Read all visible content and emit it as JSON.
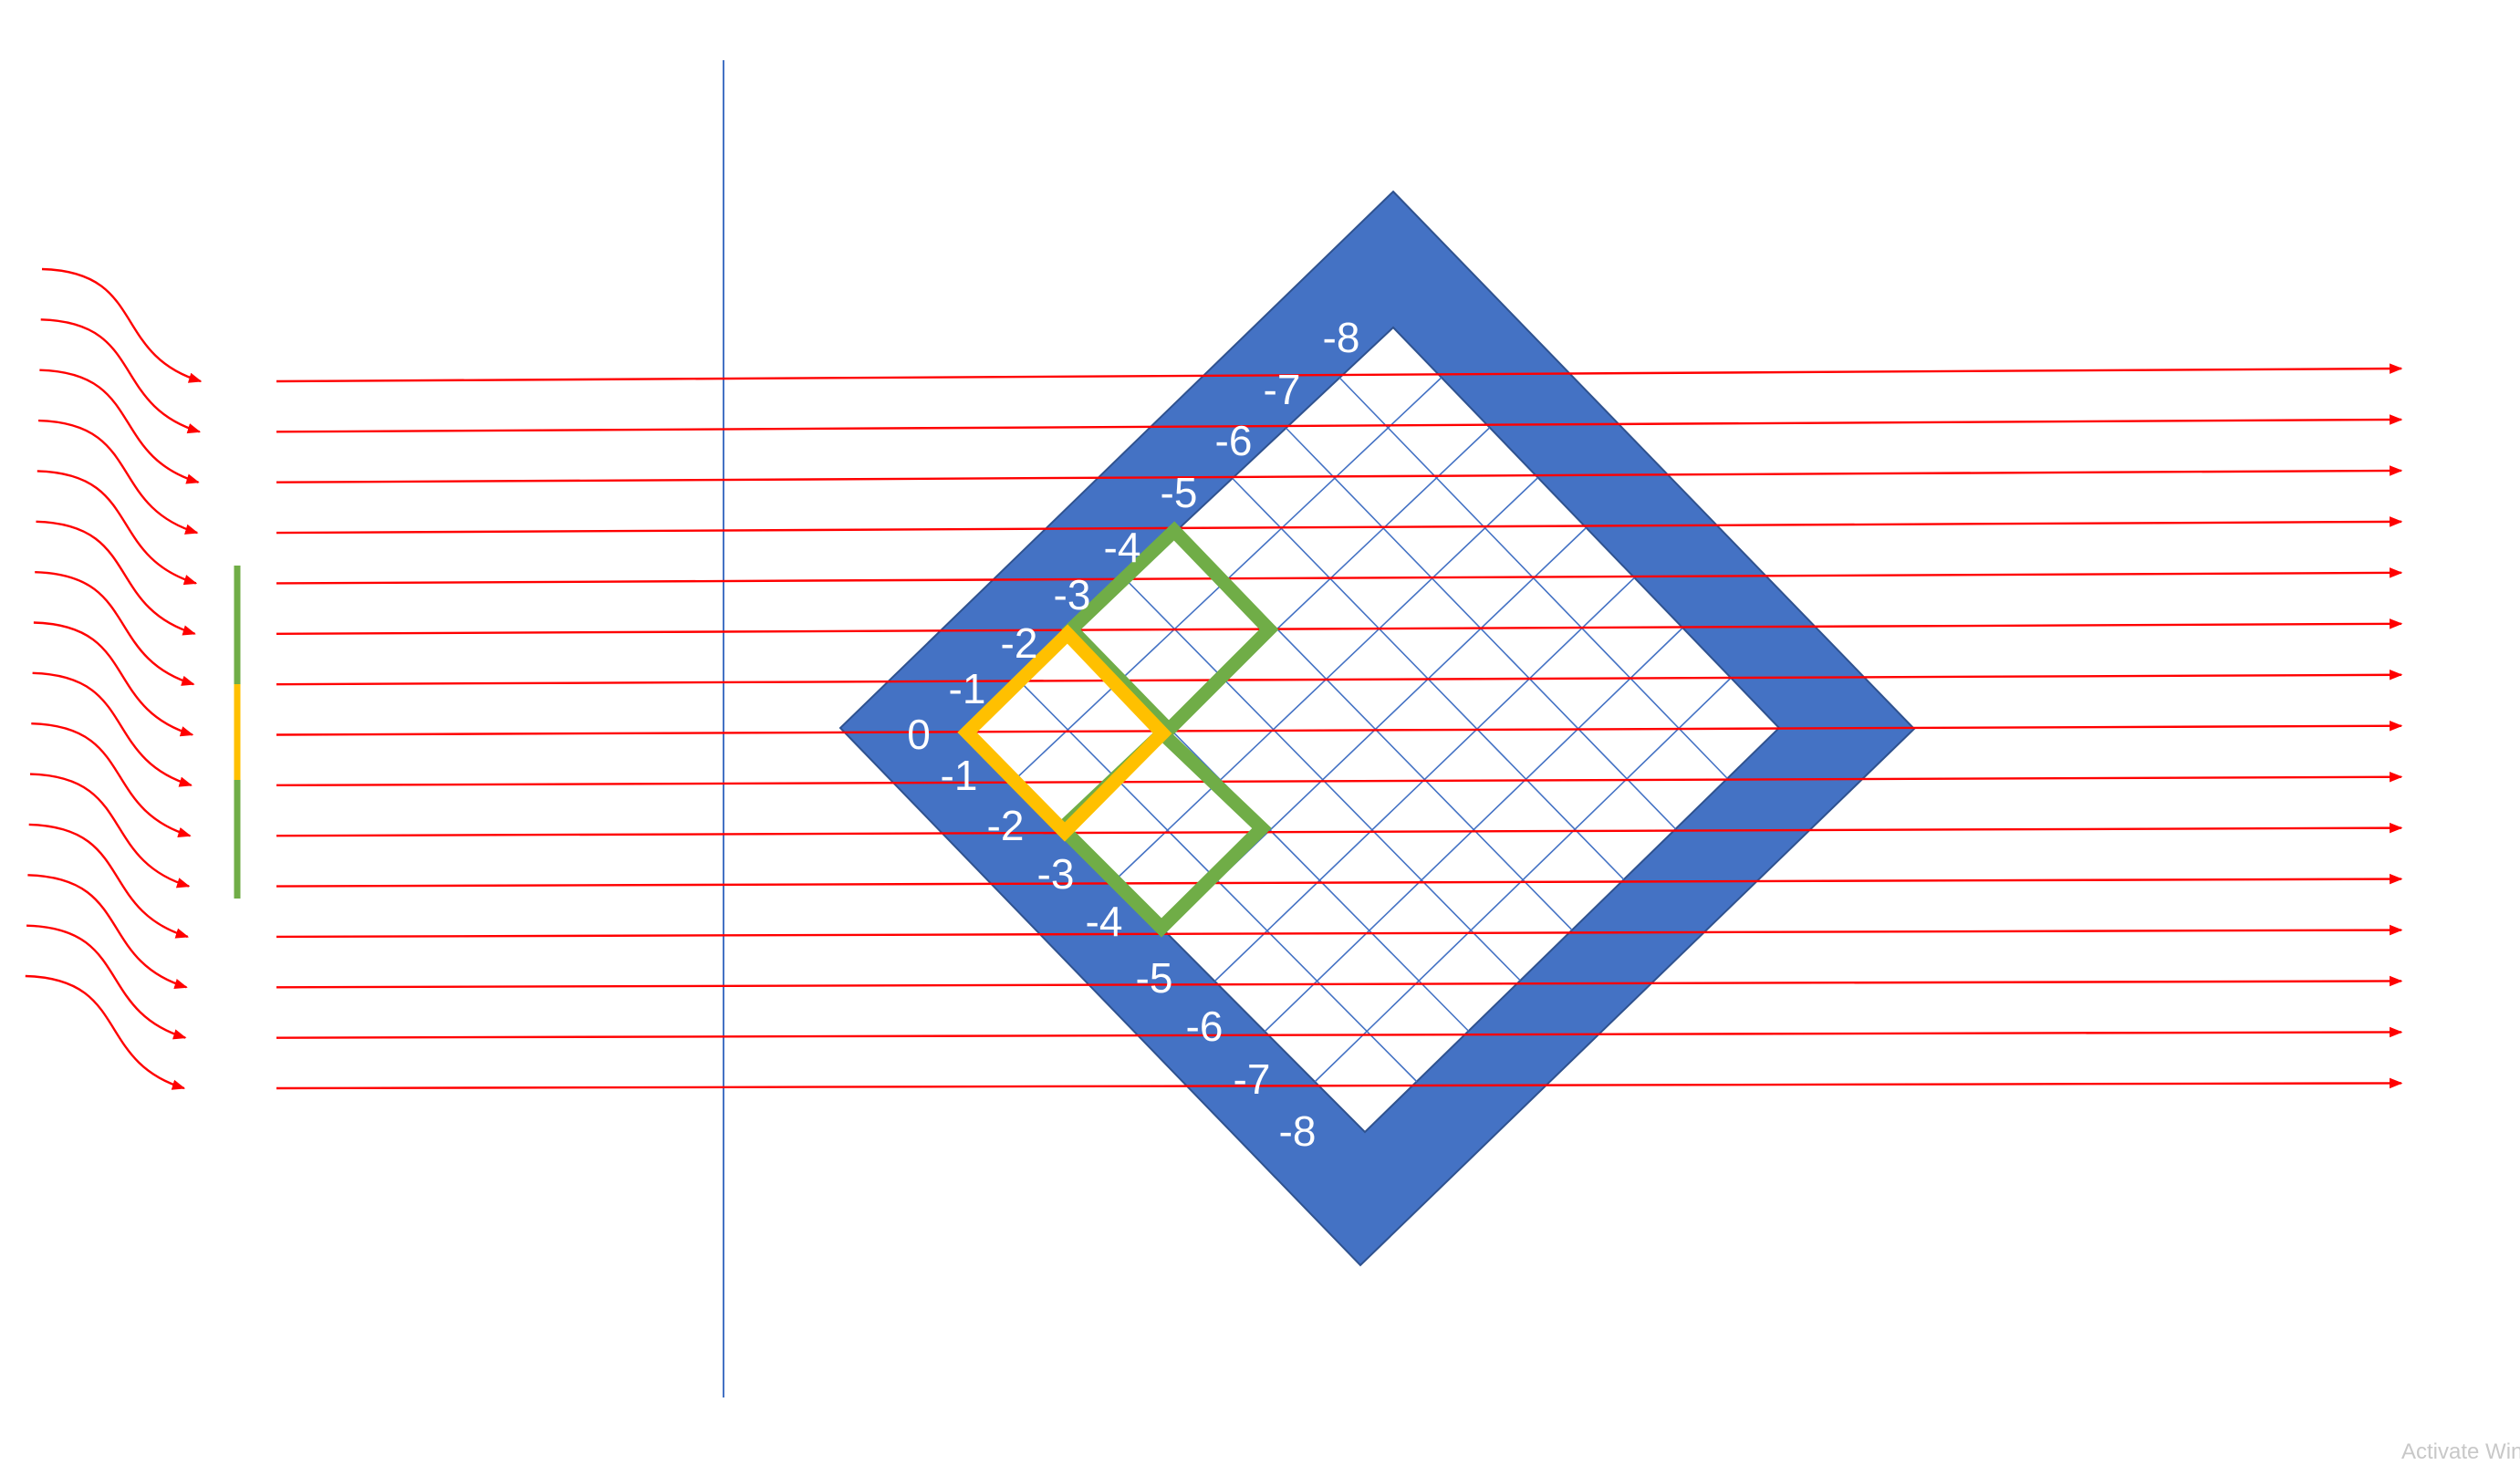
{
  "colors": {
    "frame": "#4472c4",
    "grid": "#4472c4",
    "rays": "#ff0000",
    "center_square": "#ffc000",
    "side_squares": "#70ad47",
    "axis": "#4472c4",
    "label": "#ffffff"
  },
  "upper_edge_labels": [
    "0",
    "-1",
    "-2",
    "-3",
    "-4",
    "-5",
    "-6",
    "-7",
    "-8"
  ],
  "lower_edge_labels": [
    "-1",
    "-2",
    "-3",
    "-4",
    "-5",
    "-6",
    "-7",
    "-8"
  ],
  "ray_count": 15,
  "wave_count": 15,
  "watermark": "Activate Windows"
}
